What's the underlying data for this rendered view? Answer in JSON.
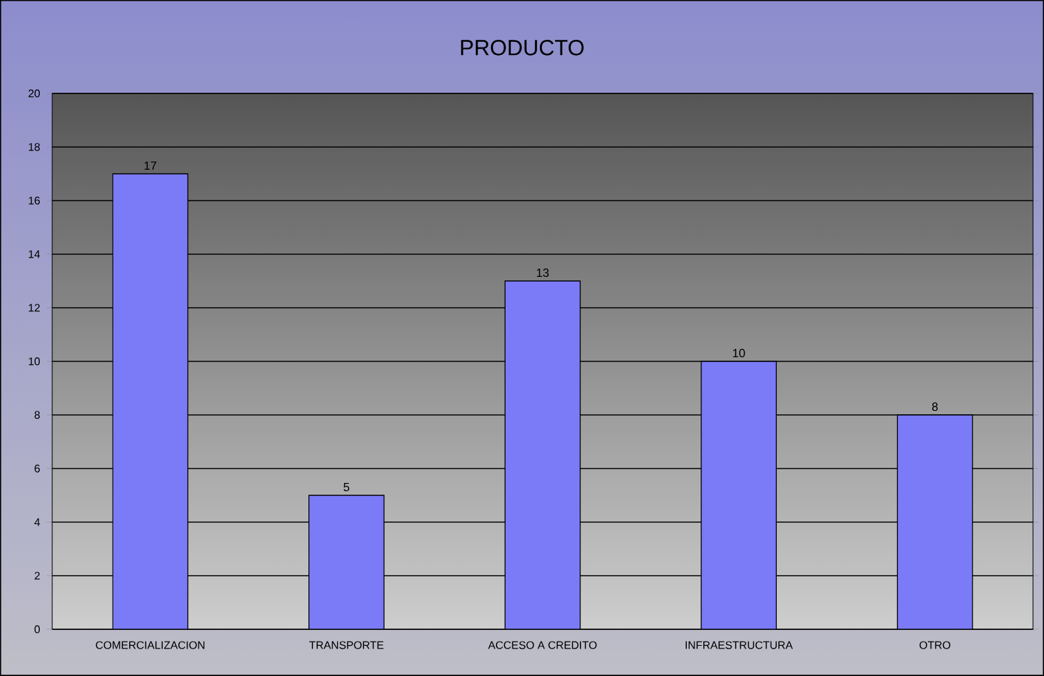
{
  "chart_data": {
    "type": "bar",
    "title": "PRODUCTO",
    "categories": [
      "COMERCIALIZACION",
      "TRANSPORTE",
      "ACCESO A CREDITO",
      "INFRAESTRUCTURA",
      "OTRO"
    ],
    "values": [
      17,
      5,
      13,
      10,
      8
    ],
    "color": "#7b7bf8",
    "ylim": [
      0,
      20
    ],
    "yticks": [
      0,
      2,
      4,
      6,
      8,
      10,
      12,
      14,
      16,
      18,
      20
    ],
    "grid": "y",
    "data_labels": true
  }
}
